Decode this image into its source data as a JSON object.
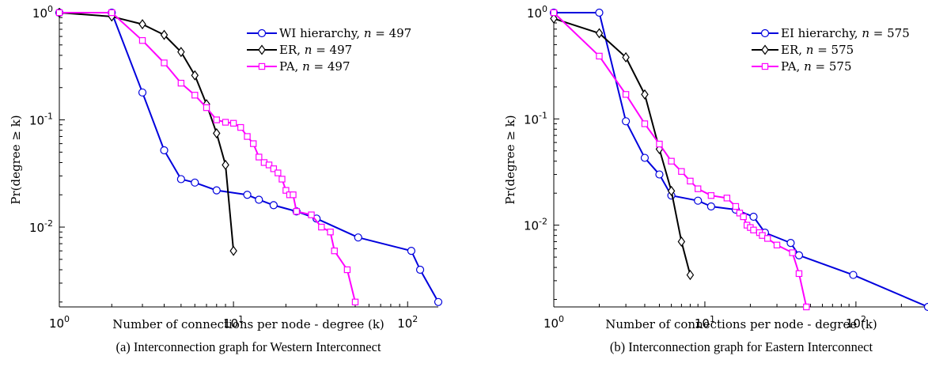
{
  "chart_data": [
    {
      "type": "line",
      "panel": "a",
      "caption": "(a) Interconnection graph for Western Interconnect",
      "xlabel": "Number of connections per node - degree (k)",
      "ylabel": "Pr(degree ≥ k)",
      "xscale": "log",
      "yscale": "log",
      "xlim": [
        1,
        150
      ],
      "ylim": [
        0.0018,
        1
      ],
      "x_ticks": [
        {
          "value": 1,
          "base": "10",
          "exp": "0"
        },
        {
          "value": 10,
          "base": "10",
          "exp": "1"
        },
        {
          "value": 100,
          "base": "10",
          "exp": "2"
        }
      ],
      "y_ticks": [
        {
          "value": 1,
          "base": "10",
          "exp": "0"
        },
        {
          "value": 0.1,
          "base": "10",
          "exp": "-1"
        },
        {
          "value": 0.01,
          "base": "10",
          "exp": "-2"
        }
      ],
      "legend_position": "top-right",
      "series": [
        {
          "name": "WI hierarchy, ",
          "name_n": "n",
          "name_eq": " = 497",
          "color": "#0000dd",
          "marker": "circle",
          "x": [
            1,
            2,
            3,
            4,
            5,
            6,
            8,
            12,
            14,
            17,
            23,
            30,
            52,
            105,
            118,
            150
          ],
          "y": [
            1,
            1,
            0.18,
            0.052,
            0.028,
            0.026,
            0.022,
            0.02,
            0.018,
            0.016,
            0.014,
            0.012,
            0.008,
            0.006,
            0.004,
            0.002
          ]
        },
        {
          "name": "ER, ",
          "name_n": "n",
          "name_eq": " = 497",
          "color": "#000000",
          "marker": "diamond",
          "x": [
            1,
            2,
            3,
            4,
            5,
            6,
            7,
            8,
            9,
            10
          ],
          "y": [
            1,
            0.92,
            0.78,
            0.62,
            0.43,
            0.26,
            0.14,
            0.075,
            0.038,
            0.006
          ]
        },
        {
          "name": "PA, ",
          "name_n": "n",
          "name_eq": " = 497",
          "color": "#ff00ff",
          "marker": "square",
          "x": [
            1,
            2,
            3,
            4,
            5,
            6,
            7,
            8,
            9,
            10,
            11,
            12,
            13,
            14,
            15,
            16,
            17,
            18,
            19,
            20,
            21,
            22,
            23,
            28,
            32,
            36,
            38,
            45,
            50
          ],
          "y": [
            1,
            1,
            0.55,
            0.34,
            0.22,
            0.17,
            0.13,
            0.1,
            0.095,
            0.093,
            0.085,
            0.07,
            0.06,
            0.045,
            0.04,
            0.038,
            0.035,
            0.032,
            0.028,
            0.022,
            0.02,
            0.02,
            0.014,
            0.013,
            0.01,
            0.009,
            0.006,
            0.004,
            0.002
          ]
        }
      ]
    },
    {
      "type": "line",
      "panel": "b",
      "caption": "(b) Interconnection graph for Eastern Interconnect",
      "xlabel": "Number of connections per node - degree (k)",
      "ylabel": "Pr(degree ≥ k)",
      "xscale": "log",
      "yscale": "log",
      "xlim": [
        1,
        300
      ],
      "ylim": [
        0.0017,
        1
      ],
      "x_ticks": [
        {
          "value": 1,
          "base": "10",
          "exp": "0"
        },
        {
          "value": 10,
          "base": "10",
          "exp": "1"
        },
        {
          "value": 100,
          "base": "10",
          "exp": "2"
        }
      ],
      "y_ticks": [
        {
          "value": 1,
          "base": "10",
          "exp": "0"
        },
        {
          "value": 0.1,
          "base": "10",
          "exp": "-1"
        },
        {
          "value": 0.01,
          "base": "10",
          "exp": "-2"
        }
      ],
      "legend_position": "top-right",
      "series": [
        {
          "name": "EI hierarchy, ",
          "name_n": "n",
          "name_eq": " = 575",
          "color": "#0000dd",
          "marker": "circle",
          "x": [
            1,
            2,
            3,
            4,
            5,
            6,
            9,
            11,
            16,
            21,
            25,
            37,
            42,
            96,
            300
          ],
          "y": [
            1,
            1,
            0.095,
            0.043,
            0.03,
            0.019,
            0.017,
            0.015,
            0.014,
            0.012,
            0.0085,
            0.0068,
            0.0052,
            0.0034,
            0.0017
          ]
        },
        {
          "name": "ER, ",
          "name_n": "n",
          "name_eq": " = 575",
          "color": "#000000",
          "marker": "diamond",
          "x": [
            1,
            2,
            3,
            4,
            5,
            6,
            7,
            8
          ],
          "y": [
            0.88,
            0.64,
            0.38,
            0.17,
            0.052,
            0.021,
            0.007,
            0.0034
          ]
        },
        {
          "name": "PA, ",
          "name_n": "n",
          "name_eq": " = 575",
          "color": "#ff00ff",
          "marker": "square",
          "x": [
            1,
            2,
            3,
            4,
            5,
            6,
            7,
            8,
            9,
            11,
            14,
            16,
            17,
            18,
            19,
            20,
            21,
            23,
            24,
            26,
            30,
            38,
            42,
            47
          ],
          "y": [
            1,
            0.39,
            0.17,
            0.09,
            0.058,
            0.04,
            0.032,
            0.026,
            0.022,
            0.019,
            0.018,
            0.015,
            0.013,
            0.012,
            0.01,
            0.0095,
            0.009,
            0.0085,
            0.008,
            0.0075,
            0.0065,
            0.0055,
            0.0035,
            0.0017
          ]
        }
      ]
    }
  ]
}
